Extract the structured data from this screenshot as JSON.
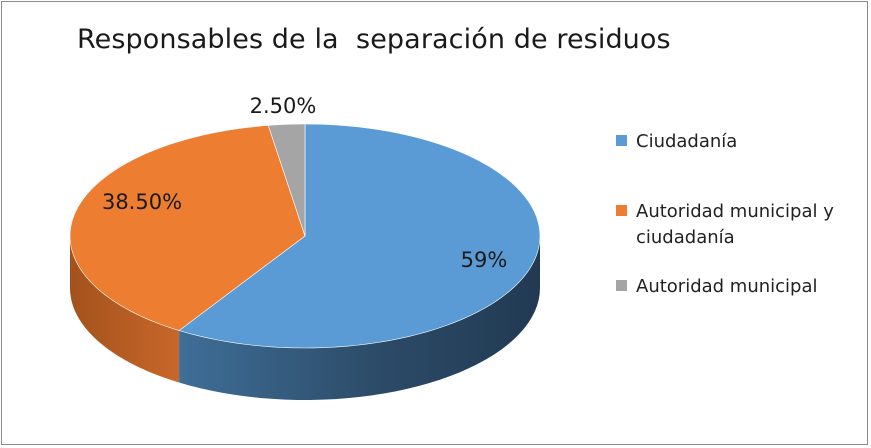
{
  "chart_data": {
    "type": "pie",
    "title": "Responsables de la  separación de residuos",
    "categories": [
      "Ciudadanía",
      "Autoridad municipal y ciudadanía",
      "Autoridad municipal"
    ],
    "values": [
      59,
      38.5,
      2.5
    ],
    "data_labels": [
      "59%",
      "38.50%",
      "2.50%"
    ],
    "colors": [
      "#5b9bd5",
      "#ed7d31",
      "#a5a5a5"
    ],
    "side_colors": [
      "#2e4a64",
      "#b55c20",
      "#7f7f7f"
    ],
    "legend": {
      "placement": "right",
      "items": [
        {
          "label_lines": [
            "Ciudadanía"
          ],
          "color": "#5b9bd5"
        },
        {
          "label_lines": [
            "Autoridad municipal y",
            "ciudadanía"
          ],
          "color": "#ed7d31"
        },
        {
          "label_lines": [
            "Autoridad municipal"
          ],
          "color": "#a5a5a5"
        }
      ]
    },
    "style": "3d-pie"
  }
}
